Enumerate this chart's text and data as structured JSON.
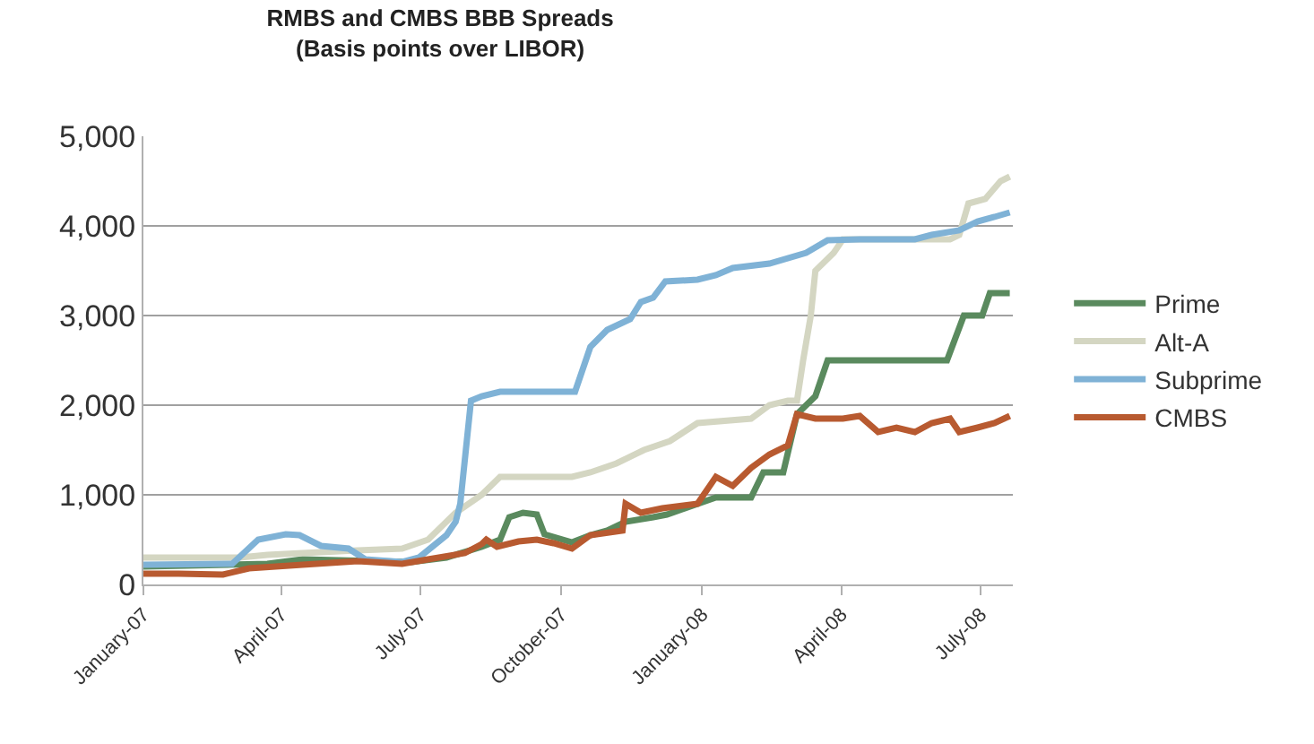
{
  "chart_data": {
    "type": "line",
    "title": "RMBS and CMBS BBB Spreads",
    "subtitle": "(Basis points over LIBOR)",
    "xlim": [
      "2007-01-01",
      "2008-07-22"
    ],
    "xticks": [
      {
        "value": "2007-01-01",
        "label": "January-07"
      },
      {
        "value": "2007-04-01",
        "label": "April-07"
      },
      {
        "value": "2007-07-01",
        "label": "July-07"
      },
      {
        "value": "2007-10-01",
        "label": "October-07"
      },
      {
        "value": "2008-01-01",
        "label": "January-08"
      },
      {
        "value": "2008-04-01",
        "label": "April-08"
      },
      {
        "value": "2008-07-01",
        "label": "July-08"
      }
    ],
    "ylim": [
      0,
      5000
    ],
    "yticks": [
      0,
      {
        "value": 1000,
        "label": "1,000"
      },
      {
        "value": 2000,
        "label": "2,000"
      },
      {
        "value": 3000,
        "label": "3,000"
      },
      {
        "value": 4000,
        "label": "4,000"
      },
      {
        "value": 5000,
        "label": "5,000"
      }
    ],
    "grid": "y",
    "legend": "right",
    "marker": "none",
    "line_style": "solid",
    "series": [
      {
        "name": "Prime",
        "color": "#5a8a5e",
        "x": [
          "2007-01-01",
          "2007-03-23",
          "2007-04-15",
          "2007-06-25",
          "2007-07-18",
          "2007-08-10",
          "2007-08-22",
          "2007-08-28",
          "2007-09-06",
          "2007-09-15",
          "2007-09-20",
          "2007-10-08",
          "2007-10-20",
          "2007-10-31",
          "2007-11-12",
          "2007-11-30",
          "2007-12-09",
          "2008-01-10",
          "2008-02-02",
          "2008-02-10",
          "2008-02-23",
          "2008-03-03",
          "2008-03-15",
          "2008-03-23",
          "2008-06-09",
          "2008-06-20",
          "2008-07-02",
          "2008-07-07",
          "2008-07-20"
        ],
        "values": [
          200,
          230,
          280,
          250,
          300,
          420,
          500,
          750,
          800,
          780,
          560,
          470,
          550,
          600,
          700,
          750,
          780,
          970,
          970,
          1250,
          1250,
          1900,
          2100,
          2500,
          2500,
          3000,
          3000,
          3250,
          3250
        ]
      },
      {
        "name": "Alt-A",
        "color": "#d4d6c2",
        "x": [
          "2007-01-01",
          "2007-03-05",
          "2007-03-23",
          "2007-04-15",
          "2007-05-21",
          "2007-06-19",
          "2007-07-06",
          "2007-07-24",
          "2007-08-10",
          "2007-08-22",
          "2007-10-08",
          "2007-10-20",
          "2007-11-06",
          "2007-11-24",
          "2007-12-11",
          "2007-12-29",
          "2008-02-02",
          "2008-02-14",
          "2008-02-26",
          "2008-03-03",
          "2008-03-07",
          "2008-03-12",
          "2008-03-15",
          "2008-03-27",
          "2008-04-02",
          "2008-06-11",
          "2008-06-17",
          "2008-06-23",
          "2008-07-04",
          "2008-07-14",
          "2008-07-20"
        ],
        "values": [
          300,
          300,
          330,
          350,
          380,
          400,
          500,
          800,
          1000,
          1200,
          1200,
          1250,
          1350,
          1500,
          1600,
          1800,
          1850,
          2000,
          2050,
          2050,
          2500,
          3000,
          3500,
          3700,
          3850,
          3850,
          3900,
          4250,
          4300,
          4500,
          4550
        ]
      },
      {
        "name": "Subprime",
        "color": "#7fb2d6",
        "x": [
          "2007-01-01",
          "2007-02-28",
          "2007-03-17",
          "2007-04-04",
          "2007-04-13",
          "2007-04-27",
          "2007-05-15",
          "2007-05-26",
          "2007-06-19",
          "2007-06-30",
          "2007-07-18",
          "2007-07-24",
          "2007-07-27",
          "2007-08-03",
          "2007-08-10",
          "2007-08-22",
          "2007-10-10",
          "2007-10-20",
          "2007-10-31",
          "2007-11-15",
          "2007-11-22",
          "2007-11-30",
          "2007-12-08",
          "2007-12-29",
          "2008-01-10",
          "2008-01-21",
          "2008-02-14",
          "2008-03-09",
          "2008-03-23",
          "2008-04-13",
          "2008-05-19",
          "2008-05-30",
          "2008-06-17",
          "2008-06-29",
          "2008-07-10",
          "2008-07-20"
        ],
        "values": [
          220,
          230,
          500,
          560,
          550,
          430,
          400,
          280,
          250,
          300,
          550,
          700,
          900,
          2050,
          2100,
          2150,
          2150,
          2650,
          2840,
          2960,
          3150,
          3200,
          3380,
          3400,
          3450,
          3530,
          3580,
          3700,
          3840,
          3850,
          3850,
          3900,
          3950,
          4050,
          4100,
          4150
        ]
      },
      {
        "name": "CMBS",
        "color": "#b85a30",
        "x": [
          "2007-01-01",
          "2007-01-24",
          "2007-02-22",
          "2007-03-11",
          "2007-04-15",
          "2007-05-21",
          "2007-06-19",
          "2007-07-06",
          "2007-07-30",
          "2007-08-10",
          "2007-08-13",
          "2007-08-20",
          "2007-09-03",
          "2007-09-15",
          "2007-09-26",
          "2007-10-08",
          "2007-10-20",
          "2007-11-10",
          "2007-11-12",
          "2007-11-22",
          "2007-12-06",
          "2007-12-29",
          "2008-01-10",
          "2008-01-21",
          "2008-02-02",
          "2008-02-14",
          "2008-02-26",
          "2008-03-03",
          "2008-03-15",
          "2008-04-02",
          "2008-04-13",
          "2008-04-25",
          "2008-05-07",
          "2008-05-19",
          "2008-05-30",
          "2008-06-11",
          "2008-06-17",
          "2008-06-29",
          "2008-07-10",
          "2008-07-20"
        ],
        "values": [
          120,
          120,
          110,
          180,
          220,
          260,
          230,
          280,
          350,
          450,
          500,
          420,
          480,
          500,
          460,
          400,
          550,
          600,
          900,
          800,
          850,
          900,
          1200,
          1100,
          1300,
          1450,
          1550,
          1900,
          1850,
          1850,
          1880,
          1700,
          1750,
          1700,
          1800,
          1850,
          1700,
          1750,
          1800,
          1880
        ]
      }
    ]
  }
}
